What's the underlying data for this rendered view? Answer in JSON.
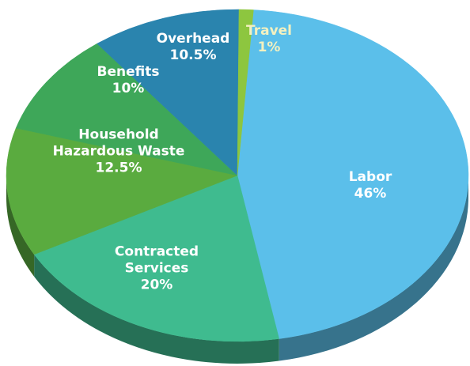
{
  "chart_data": {
    "type": "pie",
    "categories": [
      "Labor",
      "Contracted Services",
      "Household Hazardous Waste",
      "Benefits",
      "Overhead",
      "Travel"
    ],
    "values": [
      46,
      20,
      12.5,
      10,
      10.5,
      1
    ],
    "value_labels": [
      "46%",
      "20%",
      "12.5%",
      "10%",
      "10.5%",
      "1%"
    ],
    "colors": [
      "#5bbfea",
      "#3fbb8f",
      "#5aab3f",
      "#3ea759",
      "#2a84ae",
      "#8dc63f"
    ]
  }
}
